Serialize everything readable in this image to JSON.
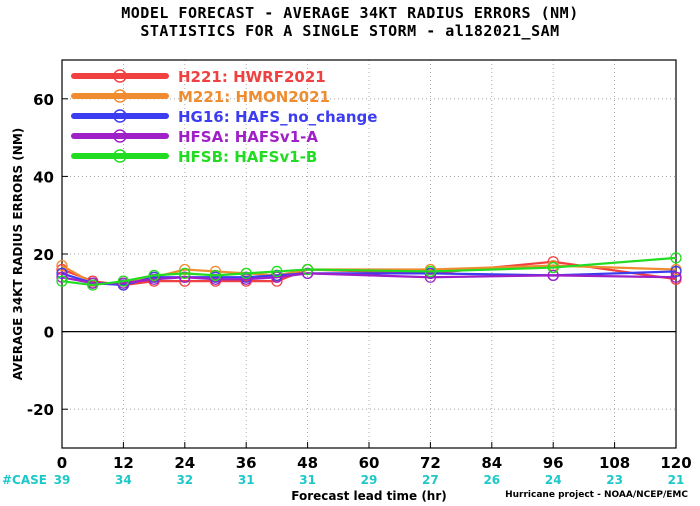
{
  "header": {
    "title_line1": "MODEL FORECAST - AVERAGE 34KT RADIUS ERRORS (NM)",
    "title_line2": "STATISTICS FOR A SINGLE STORM - al182021_SAM"
  },
  "footer": {
    "credit": "Hurricane project - NOAA/NCEP/EMC"
  },
  "colors": {
    "zero_line": "#000000",
    "grid": "#9a9a9a",
    "case_text": "#1ec8c8"
  },
  "chart_data": {
    "type": "line",
    "xlabel": "Forecast lead time (hr)",
    "ylabel": "AVERAGE 34KT RADIUS ERRORS (NM)",
    "xlim": [
      0,
      120
    ],
    "ylim": [
      -30,
      70
    ],
    "xticks": [
      0,
      12,
      24,
      36,
      48,
      60,
      72,
      84,
      96,
      108,
      120
    ],
    "yticks": [
      -20,
      0,
      20,
      40,
      60
    ],
    "grid": true,
    "legend_position": "top-left",
    "case_label": "#CASE",
    "cases": [
      {
        "x": 0,
        "n": "39"
      },
      {
        "x": 12,
        "n": "34"
      },
      {
        "x": 24,
        "n": "32"
      },
      {
        "x": 36,
        "n": "31"
      },
      {
        "x": 48,
        "n": "31"
      },
      {
        "x": 60,
        "n": "29"
      },
      {
        "x": 72,
        "n": "27"
      },
      {
        "x": 84,
        "n": "26"
      },
      {
        "x": 96,
        "n": "24"
      },
      {
        "x": 108,
        "n": "23"
      },
      {
        "x": 120,
        "n": "21"
      }
    ],
    "series": [
      {
        "name": "H221: HWRF2021",
        "color": "#f04040",
        "x": [
          0,
          6,
          12,
          18,
          24,
          30,
          36,
          42,
          48,
          72,
          96,
          120
        ],
        "y": [
          16,
          13,
          12,
          13,
          13,
          13,
          13,
          13,
          16,
          15,
          18,
          13.5
        ]
      },
      {
        "name": "M221: HMON2021",
        "color": "#f08c30",
        "x": [
          0,
          6,
          12,
          18,
          24,
          30,
          36,
          42,
          48,
          72,
          96,
          120
        ],
        "y": [
          17,
          12.5,
          12.5,
          14,
          16,
          15.5,
          15,
          14.5,
          16,
          16,
          17,
          16
        ]
      },
      {
        "name": "HG16: HAFS_no_change",
        "color": "#3c3cf0",
        "x": [
          0,
          6,
          12,
          18,
          24,
          30,
          36,
          42,
          48,
          72,
          96,
          120
        ],
        "y": [
          15,
          12.5,
          12,
          14,
          14,
          14,
          14,
          14.5,
          15,
          15,
          14.5,
          15.5
        ]
      },
      {
        "name": "HFSA: HAFSv1-A",
        "color": "#a020c8",
        "x": [
          0,
          6,
          12,
          18,
          24,
          30,
          36,
          42,
          48,
          72,
          96,
          120
        ],
        "y": [
          14,
          12.5,
          12.5,
          13.5,
          14,
          13.5,
          13.5,
          14,
          15,
          14,
          14.5,
          14
        ]
      },
      {
        "name": "HFSB: HAFSv1-B",
        "color": "#22dc22",
        "x": [
          0,
          6,
          12,
          18,
          24,
          30,
          36,
          42,
          48,
          72,
          96,
          120
        ],
        "y": [
          13,
          12,
          13,
          14.5,
          15,
          14.5,
          15,
          15.5,
          16,
          15.5,
          16.5,
          19
        ]
      }
    ]
  }
}
